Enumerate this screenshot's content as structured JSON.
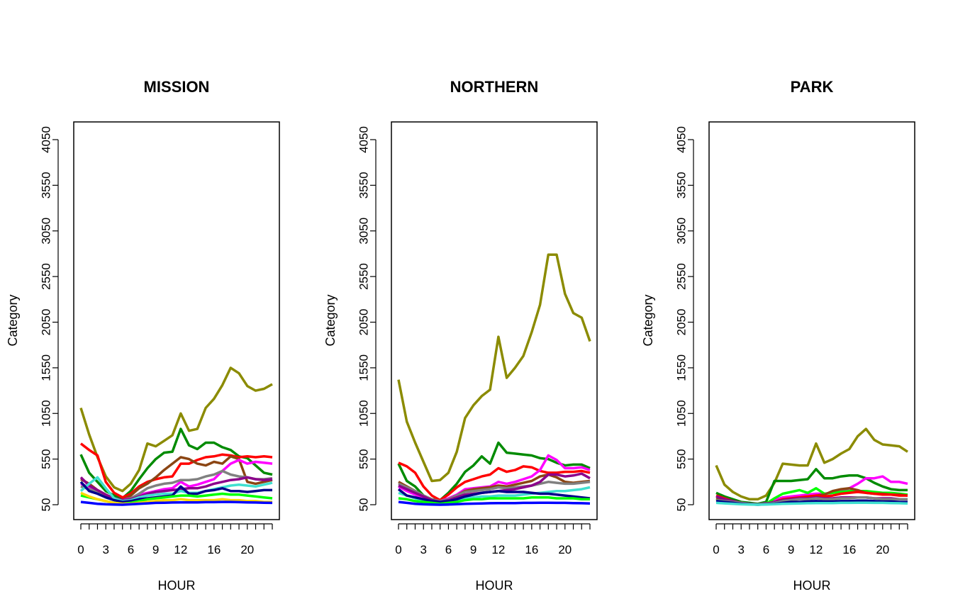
{
  "chart_data": [
    {
      "type": "line",
      "title": "MISSION",
      "xlabel": "HOUR",
      "ylabel": "Category",
      "xlim": [
        0,
        23
      ],
      "ylim": [
        50,
        4050
      ],
      "xticks": [
        "0",
        "3",
        "6",
        "9",
        "12",
        "16",
        "20"
      ],
      "xtick_values": [
        0,
        3,
        6,
        9,
        12,
        16,
        20
      ],
      "yticks": [
        "50",
        "550",
        "1050",
        "1550",
        "2050",
        "2550",
        "3050",
        "3550",
        "4050"
      ],
      "series": [
        {
          "color": "#8B8B00",
          "values": [
            1110,
            820,
            570,
            360,
            240,
            200,
            280,
            430,
            720,
            690,
            750,
            810,
            1050,
            860,
            880,
            1110,
            1210,
            1360,
            1550,
            1490,
            1350,
            1300,
            1320,
            1370
          ]
        },
        {
          "color": "#008B00",
          "values": [
            600,
            400,
            300,
            200,
            150,
            120,
            200,
            330,
            450,
            550,
            620,
            630,
            880,
            700,
            660,
            730,
            730,
            680,
            650,
            580,
            560,
            480,
            400,
            380
          ]
        },
        {
          "color": "#FF0000",
          "values": [
            720,
            650,
            590,
            300,
            180,
            130,
            170,
            250,
            300,
            330,
            350,
            360,
            500,
            500,
            540,
            570,
            580,
            600,
            590,
            570,
            580,
            570,
            580,
            570
          ]
        },
        {
          "color": "#8B4513",
          "values": [
            330,
            280,
            210,
            160,
            110,
            100,
            150,
            230,
            280,
            350,
            430,
            500,
            570,
            550,
            500,
            480,
            520,
            500,
            580,
            550,
            300,
            280,
            300,
            320
          ]
        },
        {
          "color": "#FF00FF",
          "values": [
            280,
            240,
            200,
            150,
            120,
            100,
            120,
            160,
            180,
            200,
            220,
            230,
            300,
            250,
            270,
            300,
            330,
            420,
            500,
            540,
            500,
            520,
            510,
            500
          ]
        },
        {
          "color": "#808080",
          "values": [
            250,
            220,
            190,
            150,
            110,
            90,
            120,
            170,
            230,
            260,
            280,
            290,
            320,
            320,
            330,
            360,
            380,
            420,
            380,
            360,
            350,
            330,
            330,
            340
          ]
        },
        {
          "color": "#8B008B",
          "values": [
            350,
            260,
            210,
            160,
            120,
            100,
            110,
            140,
            170,
            190,
            200,
            210,
            220,
            230,
            230,
            250,
            280,
            300,
            320,
            330,
            350,
            330,
            320,
            330
          ]
        },
        {
          "color": "#40E0D0",
          "values": [
            200,
            280,
            350,
            230,
            120,
            90,
            100,
            130,
            150,
            160,
            170,
            170,
            200,
            180,
            180,
            200,
            220,
            240,
            260,
            270,
            260,
            250,
            270,
            290
          ]
        },
        {
          "color": "#00008B",
          "values": [
            300,
            200,
            170,
            130,
            100,
            80,
            90,
            110,
            120,
            130,
            140,
            150,
            250,
            170,
            170,
            200,
            210,
            230,
            200,
            200,
            190,
            200,
            210,
            210
          ]
        },
        {
          "color": "#00FF00",
          "values": [
            150,
            130,
            110,
            90,
            70,
            60,
            70,
            90,
            110,
            120,
            130,
            140,
            150,
            150,
            140,
            150,
            160,
            170,
            160,
            160,
            150,
            140,
            130,
            120
          ]
        },
        {
          "color": "#FFD700",
          "values": [
            180,
            140,
            110,
            90,
            70,
            60,
            60,
            70,
            80,
            90,
            100,
            100,
            110,
            100,
            100,
            100,
            100,
            110,
            100,
            100,
            90,
            90,
            80,
            80
          ]
        },
        {
          "color": "#0000FF",
          "values": [
            80,
            70,
            60,
            55,
            52,
            50,
            55,
            60,
            65,
            70,
            72,
            74,
            76,
            76,
            76,
            78,
            78,
            80,
            80,
            78,
            76,
            74,
            72,
            70
          ]
        }
      ]
    },
    {
      "type": "line",
      "title": "NORTHERN",
      "xlabel": "HOUR",
      "ylabel": "Category",
      "xlim": [
        0,
        23
      ],
      "ylim": [
        50,
        4050
      ],
      "xticks": [
        "0",
        "3",
        "6",
        "9",
        "12",
        "16",
        "20"
      ],
      "xtick_values": [
        0,
        3,
        6,
        9,
        12,
        16,
        20
      ],
      "yticks": [
        "50",
        "550",
        "1050",
        "1550",
        "2050",
        "2550",
        "3050",
        "3550",
        "4050"
      ],
      "series": [
        {
          "color": "#8B8B00",
          "values": [
            1420,
            960,
            730,
            520,
            310,
            320,
            400,
            630,
            1000,
            1140,
            1240,
            1310,
            1890,
            1440,
            1550,
            1680,
            1940,
            2240,
            2790,
            2790,
            2360,
            2150,
            2100,
            1840
          ]
        },
        {
          "color": "#008B00",
          "values": [
            500,
            310,
            250,
            150,
            110,
            100,
            180,
            280,
            410,
            480,
            580,
            500,
            730,
            620,
            610,
            600,
            590,
            560,
            550,
            510,
            480,
            490,
            490,
            450
          ]
        },
        {
          "color": "#FF0000",
          "values": [
            510,
            470,
            400,
            250,
            150,
            100,
            160,
            240,
            300,
            330,
            360,
            380,
            450,
            410,
            430,
            470,
            460,
            420,
            400,
            400,
            410,
            410,
            420,
            400
          ]
        },
        {
          "color": "#FF00FF",
          "values": [
            250,
            200,
            160,
            120,
            100,
            90,
            120,
            160,
            220,
            230,
            240,
            250,
            300,
            280,
            300,
            330,
            360,
            430,
            590,
            540,
            450,
            450,
            460,
            430
          ]
        },
        {
          "color": "#8B4513",
          "values": [
            300,
            250,
            200,
            150,
            100,
            90,
            110,
            150,
            200,
            220,
            230,
            240,
            260,
            250,
            270,
            290,
            310,
            360,
            380,
            350,
            300,
            290,
            300,
            310
          ]
        },
        {
          "color": "#808080",
          "values": [
            280,
            240,
            200,
            150,
            110,
            90,
            110,
            150,
            190,
            200,
            210,
            220,
            240,
            230,
            240,
            250,
            260,
            280,
            300,
            290,
            280,
            280,
            290,
            300
          ]
        },
        {
          "color": "#8B008B",
          "values": [
            260,
            220,
            180,
            140,
            100,
            80,
            100,
            130,
            160,
            170,
            180,
            190,
            200,
            210,
            220,
            240,
            260,
            300,
            380,
            380,
            360,
            370,
            390,
            340
          ]
        },
        {
          "color": "#40E0D0",
          "values": [
            180,
            150,
            120,
            100,
            80,
            70,
            80,
            100,
            120,
            130,
            140,
            140,
            150,
            150,
            150,
            160,
            170,
            180,
            190,
            200,
            200,
            210,
            220,
            240
          ]
        },
        {
          "color": "#00008B",
          "values": [
            220,
            150,
            130,
            110,
            90,
            80,
            90,
            110,
            140,
            160,
            180,
            190,
            200,
            190,
            190,
            190,
            180,
            170,
            170,
            160,
            150,
            140,
            130,
            120
          ]
        },
        {
          "color": "#00FF00",
          "values": [
            120,
            110,
            90,
            80,
            70,
            60,
            70,
            80,
            100,
            110,
            110,
            120,
            120,
            120,
            120,
            120,
            130,
            130,
            130,
            120,
            120,
            120,
            110,
            110
          ]
        },
        {
          "color": "#0000FF",
          "values": [
            80,
            70,
            60,
            55,
            52,
            50,
            52,
            56,
            60,
            62,
            64,
            66,
            68,
            68,
            68,
            70,
            70,
            72,
            72,
            70,
            70,
            68,
            66,
            64
          ]
        }
      ]
    },
    {
      "type": "line",
      "title": "PARK",
      "xlabel": "HOUR",
      "ylabel": "Category",
      "xlim": [
        0,
        23
      ],
      "ylim": [
        50,
        4050
      ],
      "xticks": [
        "0",
        "3",
        "6",
        "9",
        "12",
        "16",
        "20"
      ],
      "xtick_values": [
        0,
        3,
        6,
        9,
        12,
        16,
        20
      ],
      "yticks": [
        "50",
        "550",
        "1050",
        "1550",
        "2050",
        "2550",
        "3050",
        "3550",
        "4050"
      ],
      "series": [
        {
          "color": "#8B8B00",
          "values": [
            480,
            270,
            190,
            140,
            110,
            110,
            150,
            290,
            500,
            490,
            480,
            480,
            720,
            510,
            550,
            610,
            660,
            800,
            880,
            760,
            710,
            700,
            690,
            630
          ]
        },
        {
          "color": "#008B00",
          "values": [
            180,
            140,
            110,
            80,
            70,
            60,
            80,
            310,
            310,
            310,
            320,
            330,
            440,
            340,
            340,
            360,
            370,
            370,
            340,
            290,
            250,
            220,
            210,
            210
          ]
        },
        {
          "color": "#FF00FF",
          "values": [
            130,
            110,
            90,
            70,
            60,
            55,
            65,
            100,
            130,
            140,
            150,
            160,
            170,
            170,
            180,
            200,
            230,
            280,
            340,
            340,
            360,
            300,
            300,
            280
          ]
        },
        {
          "color": "#00FF00",
          "values": [
            120,
            100,
            80,
            70,
            60,
            55,
            60,
            120,
            170,
            190,
            210,
            180,
            230,
            170,
            180,
            190,
            200,
            200,
            200,
            190,
            180,
            180,
            170,
            160
          ]
        },
        {
          "color": "#8B4513",
          "values": [
            110,
            90,
            80,
            70,
            60,
            55,
            60,
            80,
            100,
            110,
            120,
            130,
            150,
            160,
            200,
            220,
            230,
            210,
            180,
            170,
            170,
            160,
            160,
            150
          ]
        },
        {
          "color": "#FF0000",
          "values": [
            150,
            120,
            90,
            70,
            60,
            55,
            60,
            80,
            110,
            120,
            130,
            140,
            150,
            140,
            150,
            170,
            180,
            190,
            180,
            170,
            160,
            160,
            150,
            150
          ]
        },
        {
          "color": "#8B008B",
          "values": [
            140,
            110,
            90,
            70,
            60,
            55,
            60,
            80,
            100,
            110,
            120,
            120,
            130,
            120,
            120,
            130,
            130,
            130,
            130,
            120,
            120,
            120,
            110,
            110
          ]
        },
        {
          "color": "#808080",
          "values": [
            100,
            90,
            80,
            70,
            60,
            55,
            60,
            70,
            90,
            100,
            110,
            110,
            120,
            110,
            110,
            120,
            120,
            130,
            130,
            120,
            110,
            110,
            110,
            110
          ]
        },
        {
          "color": "#00008B",
          "values": [
            90,
            80,
            70,
            60,
            55,
            50,
            55,
            60,
            70,
            80,
            80,
            85,
            90,
            85,
            85,
            90,
            90,
            95,
            95,
            90,
            85,
            85,
            80,
            80
          ]
        },
        {
          "color": "#40E0D0",
          "values": [
            70,
            65,
            60,
            55,
            52,
            50,
            52,
            56,
            60,
            62,
            64,
            66,
            68,
            68,
            68,
            70,
            70,
            72,
            72,
            70,
            70,
            68,
            66,
            64
          ]
        }
      ]
    }
  ]
}
